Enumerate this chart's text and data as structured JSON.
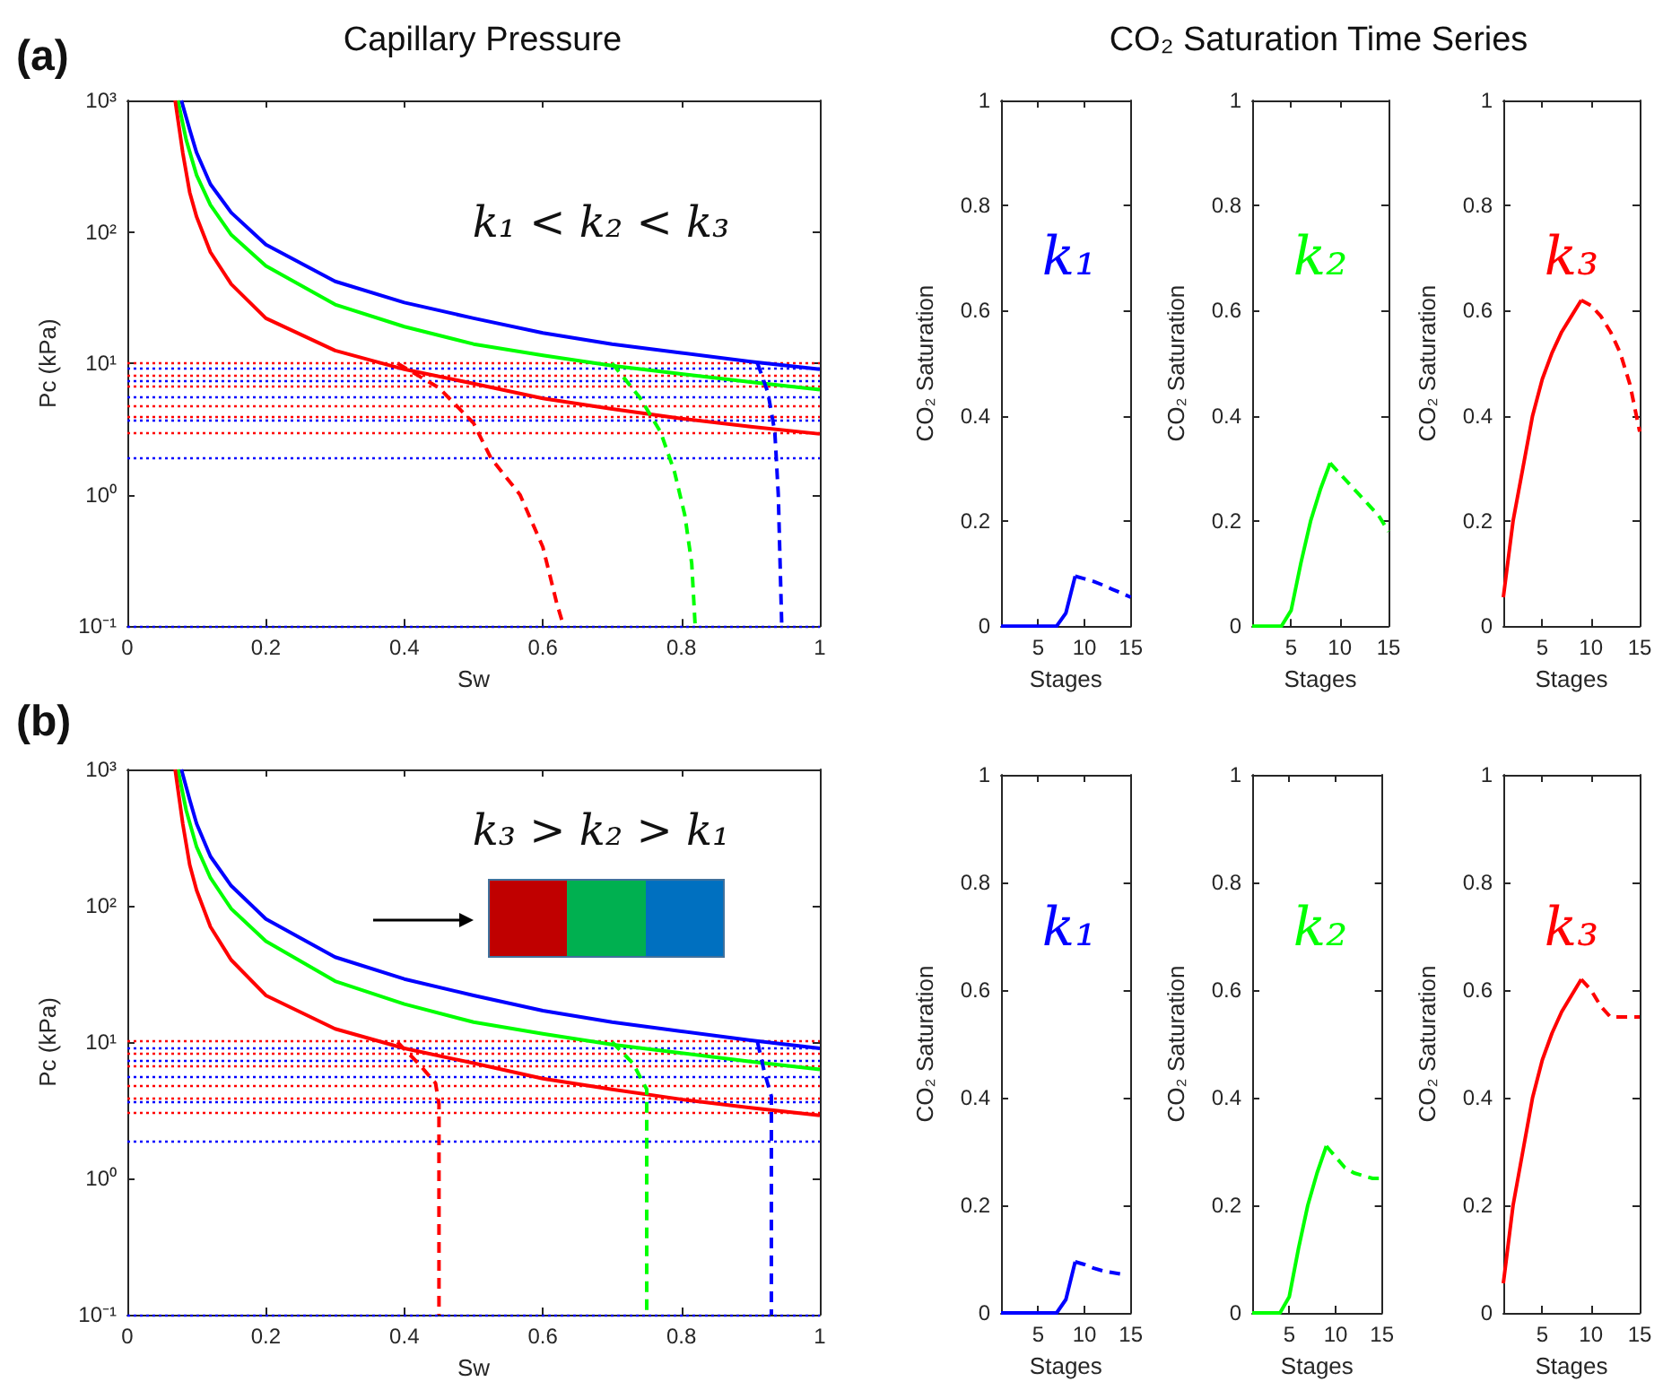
{
  "chart_data": [
    {
      "type": "line",
      "title": "Capillary Pressure",
      "xlabel": "Sw",
      "ylabel": "Pc (kPa)",
      "annotations": [
        "(a)",
        "k₁ < k₂ < k₃"
      ],
      "log": "y",
      "marker": "none",
      "xlim": [
        0,
        1
      ],
      "xticks": [
        0,
        0.2,
        0.4,
        0.6,
        0.8,
        1
      ],
      "ylim": [
        0.1,
        1000
      ],
      "yticks": [
        {
          "value": 0.1,
          "label": "10⁻¹"
        },
        {
          "value": 1,
          "label": "10⁰"
        },
        {
          "value": 10,
          "label": "10¹"
        },
        {
          "value": 100,
          "label": "10²"
        },
        {
          "value": 1000,
          "label": "10³"
        }
      ],
      "series": [
        {
          "color": "#0000ff",
          "line_style": "solid",
          "x": [
            0.078,
            0.09,
            0.1,
            0.12,
            0.15,
            0.2,
            0.3,
            0.4,
            0.5,
            0.6,
            0.7,
            0.8,
            0.9,
            1.0
          ],
          "values": [
            1000,
            600,
            400,
            230,
            140,
            80,
            42,
            29,
            22,
            17,
            14,
            12,
            10.3,
            9
          ]
        },
        {
          "color": "#00ff00",
          "line_style": "solid",
          "x": [
            0.073,
            0.085,
            0.1,
            0.12,
            0.15,
            0.2,
            0.3,
            0.4,
            0.5,
            0.6,
            0.7,
            0.8,
            0.9,
            1.0
          ],
          "values": [
            1000,
            500,
            270,
            160,
            95,
            55,
            28,
            19,
            14,
            11.5,
            9.6,
            8.3,
            7.2,
            6.3
          ]
        },
        {
          "color": "#ff0000",
          "line_style": "solid",
          "x": [
            0.069,
            0.08,
            0.09,
            0.1,
            0.12,
            0.15,
            0.2,
            0.3,
            0.4,
            0.5,
            0.6,
            0.7,
            0.8,
            0.9,
            1.0
          ],
          "values": [
            1000,
            400,
            200,
            130,
            70,
            40,
            22,
            12.5,
            9,
            7,
            5.4,
            4.5,
            3.8,
            3.3,
            2.9
          ]
        },
        {
          "color": "#0000ff",
          "line_style": "dashed",
          "x": [
            0.91,
            0.925,
            0.935,
            0.94,
            0.945
          ],
          "values": [
            10,
            6,
            3,
            1,
            0.1
          ]
        },
        {
          "color": "#00ff00",
          "line_style": "dashed",
          "x": [
            0.7,
            0.74,
            0.77,
            0.79,
            0.805,
            0.815,
            0.82
          ],
          "values": [
            10,
            5.5,
            3,
            1.5,
            0.7,
            0.3,
            0.1
          ]
        },
        {
          "color": "#ff0000",
          "line_style": "dashed",
          "x": [
            0.39,
            0.45,
            0.5,
            0.525,
            0.567,
            0.6,
            0.62,
            0.63
          ],
          "values": [
            10,
            6.5,
            3.5,
            1.9,
            1,
            0.4,
            0.15,
            0.1
          ]
        }
      ],
      "ref_lines": [
        {
          "axis": "y",
          "value": 10.2,
          "color": "#ff0000",
          "line_style": "dotted"
        },
        {
          "axis": "y",
          "value": 9.1,
          "color": "#0000ff",
          "line_style": "dotted"
        },
        {
          "axis": "y",
          "value": 8.2,
          "color": "#ff0000",
          "line_style": "dotted"
        },
        {
          "axis": "y",
          "value": 7.4,
          "color": "#0000ff",
          "line_style": "dotted"
        },
        {
          "axis": "y",
          "value": 6.7,
          "color": "#ff0000",
          "line_style": "dotted"
        },
        {
          "axis": "y",
          "value": 5.5,
          "color": "#0000ff",
          "line_style": "dotted"
        },
        {
          "axis": "y",
          "value": 4.8,
          "color": "#ff0000",
          "line_style": "dotted"
        },
        {
          "axis": "y",
          "value": 3.9,
          "color": "#ff0000",
          "line_style": "dotted"
        },
        {
          "axis": "y",
          "value": 3.7,
          "color": "#0000ff",
          "line_style": "dotted"
        },
        {
          "axis": "y",
          "value": 3.0,
          "color": "#ff0000",
          "line_style": "dotted"
        },
        {
          "axis": "y",
          "value": 1.9,
          "color": "#0000ff",
          "line_style": "dotted"
        },
        {
          "axis": "y",
          "value": 0.1,
          "color": "#0000ff",
          "line_style": "dotted"
        }
      ]
    },
    {
      "type": "line",
      "xlabel": "Stages",
      "ylabel": "CO₂ Saturation",
      "annotations": [
        "k₁"
      ],
      "marker": "none",
      "xlim": [
        1,
        15
      ],
      "xticks": [
        5,
        10,
        15
      ],
      "ylim": [
        0,
        1
      ],
      "yticks": [
        0,
        0.2,
        0.4,
        0.6,
        0.8,
        1
      ],
      "series": [
        {
          "color": "#0000ff",
          "line_style": "solid",
          "x": [
            1,
            2,
            3,
            4,
            5,
            6,
            7,
            8,
            9
          ],
          "values": [
            0,
            0,
            0,
            0,
            0,
            0,
            0,
            0.025,
            0.095
          ]
        },
        {
          "color": "#0000ff",
          "line_style": "dashed",
          "x": [
            9,
            10,
            11,
            12,
            13,
            14,
            15
          ],
          "values": [
            0.095,
            0.09,
            0.085,
            0.078,
            0.07,
            0.063,
            0.055
          ]
        }
      ]
    },
    {
      "type": "line",
      "title": "CO₂ Saturation Time Series",
      "xlabel": "Stages",
      "ylabel": "CO₂ Saturation",
      "annotations": [
        "k₂"
      ],
      "marker": "none",
      "xlim": [
        1,
        15
      ],
      "xticks": [
        5,
        10,
        15
      ],
      "ylim": [
        0,
        1
      ],
      "yticks": [
        0,
        0.2,
        0.4,
        0.6,
        0.8,
        1
      ],
      "series": [
        {
          "color": "#00ff00",
          "line_style": "solid",
          "x": [
            1,
            2,
            3,
            4,
            5,
            6,
            7,
            8,
            9
          ],
          "values": [
            0,
            0,
            0,
            0,
            0.03,
            0.12,
            0.2,
            0.26,
            0.31
          ]
        },
        {
          "color": "#00ff00",
          "line_style": "dashed",
          "x": [
            9,
            10,
            11,
            12,
            13,
            14,
            15
          ],
          "values": [
            0.31,
            0.29,
            0.27,
            0.25,
            0.23,
            0.21,
            0.18
          ]
        }
      ]
    },
    {
      "type": "line",
      "xlabel": "Stages",
      "ylabel": "CO₂ Saturation",
      "annotations": [
        "k₃"
      ],
      "marker": "none",
      "xlim": [
        1,
        15
      ],
      "xticks": [
        5,
        10,
        15
      ],
      "ylim": [
        0,
        1
      ],
      "yticks": [
        0,
        0.2,
        0.4,
        0.6,
        0.8,
        1
      ],
      "series": [
        {
          "color": "#ff0000",
          "line_style": "solid",
          "x": [
            1,
            2,
            3,
            4,
            5,
            6,
            7,
            8,
            9
          ],
          "values": [
            0.055,
            0.2,
            0.3,
            0.4,
            0.47,
            0.52,
            0.56,
            0.59,
            0.62
          ]
        },
        {
          "color": "#ff0000",
          "line_style": "dashed",
          "x": [
            9,
            10,
            11,
            12,
            13,
            14,
            15
          ],
          "values": [
            0.62,
            0.61,
            0.59,
            0.56,
            0.52,
            0.46,
            0.37
          ]
        }
      ]
    },
    {
      "type": "line",
      "xlabel": "Sw",
      "ylabel": "Pc (kPa)",
      "annotations": [
        "(b)",
        "k₃ > k₂ > k₁"
      ],
      "log": "y",
      "marker": "none",
      "xlim": [
        0,
        1
      ],
      "xticks": [
        0,
        0.2,
        0.4,
        0.6,
        0.8,
        1
      ],
      "ylim": [
        0.1,
        1000
      ],
      "yticks": [
        {
          "value": 0.1,
          "label": "10⁻¹"
        },
        {
          "value": 1,
          "label": "10⁰"
        },
        {
          "value": 10,
          "label": "10¹"
        },
        {
          "value": 100,
          "label": "10²"
        },
        {
          "value": 1000,
          "label": "10³"
        }
      ],
      "series": [
        {
          "color": "#0000ff",
          "line_style": "solid",
          "x": [
            0.078,
            0.09,
            0.1,
            0.12,
            0.15,
            0.2,
            0.3,
            0.4,
            0.5,
            0.6,
            0.7,
            0.8,
            0.9,
            1.0
          ],
          "values": [
            1000,
            600,
            400,
            230,
            140,
            80,
            42,
            29,
            22,
            17,
            14,
            12,
            10.3,
            9
          ]
        },
        {
          "color": "#00ff00",
          "line_style": "solid",
          "x": [
            0.073,
            0.085,
            0.1,
            0.12,
            0.15,
            0.2,
            0.3,
            0.4,
            0.5,
            0.6,
            0.7,
            0.8,
            0.9,
            1.0
          ],
          "values": [
            1000,
            500,
            270,
            160,
            95,
            55,
            28,
            19,
            14,
            11.5,
            9.6,
            8.3,
            7.2,
            6.3
          ]
        },
        {
          "color": "#ff0000",
          "line_style": "solid",
          "x": [
            0.069,
            0.08,
            0.09,
            0.1,
            0.12,
            0.15,
            0.2,
            0.3,
            0.4,
            0.5,
            0.6,
            0.7,
            0.8,
            0.9,
            1.0
          ],
          "values": [
            1000,
            400,
            200,
            130,
            70,
            40,
            22,
            12.5,
            9,
            7,
            5.4,
            4.5,
            3.8,
            3.3,
            2.9
          ]
        },
        {
          "color": "#0000ff",
          "line_style": "dashed",
          "x": [
            0.91,
            0.92,
            0.93,
            0.93
          ],
          "values": [
            10,
            6,
            4,
            0.1
          ]
        },
        {
          "color": "#00ff00",
          "line_style": "dashed",
          "x": [
            0.7,
            0.73,
            0.75,
            0.75
          ],
          "values": [
            10,
            7,
            4.5,
            0.1
          ]
        },
        {
          "color": "#ff0000",
          "line_style": "dashed",
          "x": [
            0.39,
            0.42,
            0.445,
            0.45,
            0.45
          ],
          "values": [
            10,
            7,
            5,
            3.5,
            0.1
          ]
        }
      ],
      "ref_lines": [
        {
          "axis": "y",
          "value": 10.2,
          "color": "#ff0000",
          "line_style": "dotted"
        },
        {
          "axis": "y",
          "value": 9.1,
          "color": "#0000ff",
          "line_style": "dotted"
        },
        {
          "axis": "y",
          "value": 8.2,
          "color": "#ff0000",
          "line_style": "dotted"
        },
        {
          "axis": "y",
          "value": 7.4,
          "color": "#0000ff",
          "line_style": "dotted"
        },
        {
          "axis": "y",
          "value": 6.7,
          "color": "#ff0000",
          "line_style": "dotted"
        },
        {
          "axis": "y",
          "value": 5.5,
          "color": "#0000ff",
          "line_style": "dotted"
        },
        {
          "axis": "y",
          "value": 4.8,
          "color": "#ff0000",
          "line_style": "dotted"
        },
        {
          "axis": "y",
          "value": 3.9,
          "color": "#ff0000",
          "line_style": "dotted"
        },
        {
          "axis": "y",
          "value": 3.7,
          "color": "#0000ff",
          "line_style": "dotted"
        },
        {
          "axis": "y",
          "value": 3.0,
          "color": "#ff0000",
          "line_style": "dotted"
        },
        {
          "axis": "y",
          "value": 1.9,
          "color": "#0000ff",
          "line_style": "dotted"
        },
        {
          "axis": "y",
          "value": 0.1,
          "color": "#0000ff",
          "line_style": "dotted"
        }
      ]
    },
    {
      "type": "line",
      "xlabel": "Stages",
      "ylabel": "CO₂ Saturation",
      "annotations": [
        "k₁"
      ],
      "marker": "none",
      "xlim": [
        1,
        15
      ],
      "xticks": [
        5,
        10,
        15
      ],
      "ylim": [
        0,
        1
      ],
      "yticks": [
        0,
        0.2,
        0.4,
        0.6,
        0.8,
        1
      ],
      "series": [
        {
          "color": "#0000ff",
          "line_style": "solid",
          "x": [
            1,
            2,
            3,
            4,
            5,
            6,
            7,
            8,
            9
          ],
          "values": [
            0,
            0,
            0,
            0,
            0,
            0,
            0,
            0.025,
            0.095
          ]
        },
        {
          "color": "#0000ff",
          "line_style": "dashed",
          "x": [
            9,
            10,
            11,
            12,
            13,
            14
          ],
          "values": [
            0.095,
            0.09,
            0.083,
            0.078,
            0.075,
            0.072
          ]
        }
      ]
    },
    {
      "type": "line",
      "xlabel": "Stages",
      "ylabel": "CO₂ Saturation",
      "annotations": [
        "k₂"
      ],
      "marker": "none",
      "xlim": [
        1,
        15
      ],
      "xticks": [
        5,
        10,
        15
      ],
      "ylim": [
        0,
        1
      ],
      "yticks": [
        0,
        0.2,
        0.4,
        0.6,
        0.8,
        1
      ],
      "series": [
        {
          "color": "#00ff00",
          "line_style": "solid",
          "x": [
            1,
            2,
            3,
            4,
            5,
            6,
            7,
            8,
            9
          ],
          "values": [
            0,
            0,
            0,
            0,
            0.03,
            0.12,
            0.2,
            0.26,
            0.31
          ]
        },
        {
          "color": "#00ff00",
          "line_style": "dashed",
          "x": [
            9,
            10,
            11,
            12,
            13,
            14,
            15
          ],
          "values": [
            0.31,
            0.29,
            0.27,
            0.26,
            0.255,
            0.25,
            0.25
          ]
        }
      ]
    },
    {
      "type": "line",
      "xlabel": "Stages",
      "ylabel": "CO₂ Saturation",
      "annotations": [
        "k₃"
      ],
      "marker": "none",
      "xlim": [
        1,
        15
      ],
      "xticks": [
        5,
        10,
        15
      ],
      "ylim": [
        0,
        1
      ],
      "yticks": [
        0,
        0.2,
        0.4,
        0.6,
        0.8,
        1
      ],
      "series": [
        {
          "color": "#ff0000",
          "line_style": "solid",
          "x": [
            1,
            2,
            3,
            4,
            5,
            6,
            7,
            8,
            9
          ],
          "values": [
            0.055,
            0.2,
            0.3,
            0.4,
            0.47,
            0.52,
            0.56,
            0.59,
            0.62
          ]
        },
        {
          "color": "#ff0000",
          "line_style": "dashed",
          "x": [
            9,
            10,
            11,
            12,
            13,
            14,
            15
          ],
          "values": [
            0.62,
            0.6,
            0.57,
            0.55,
            0.55,
            0.55,
            0.55
          ]
        }
      ]
    }
  ]
}
